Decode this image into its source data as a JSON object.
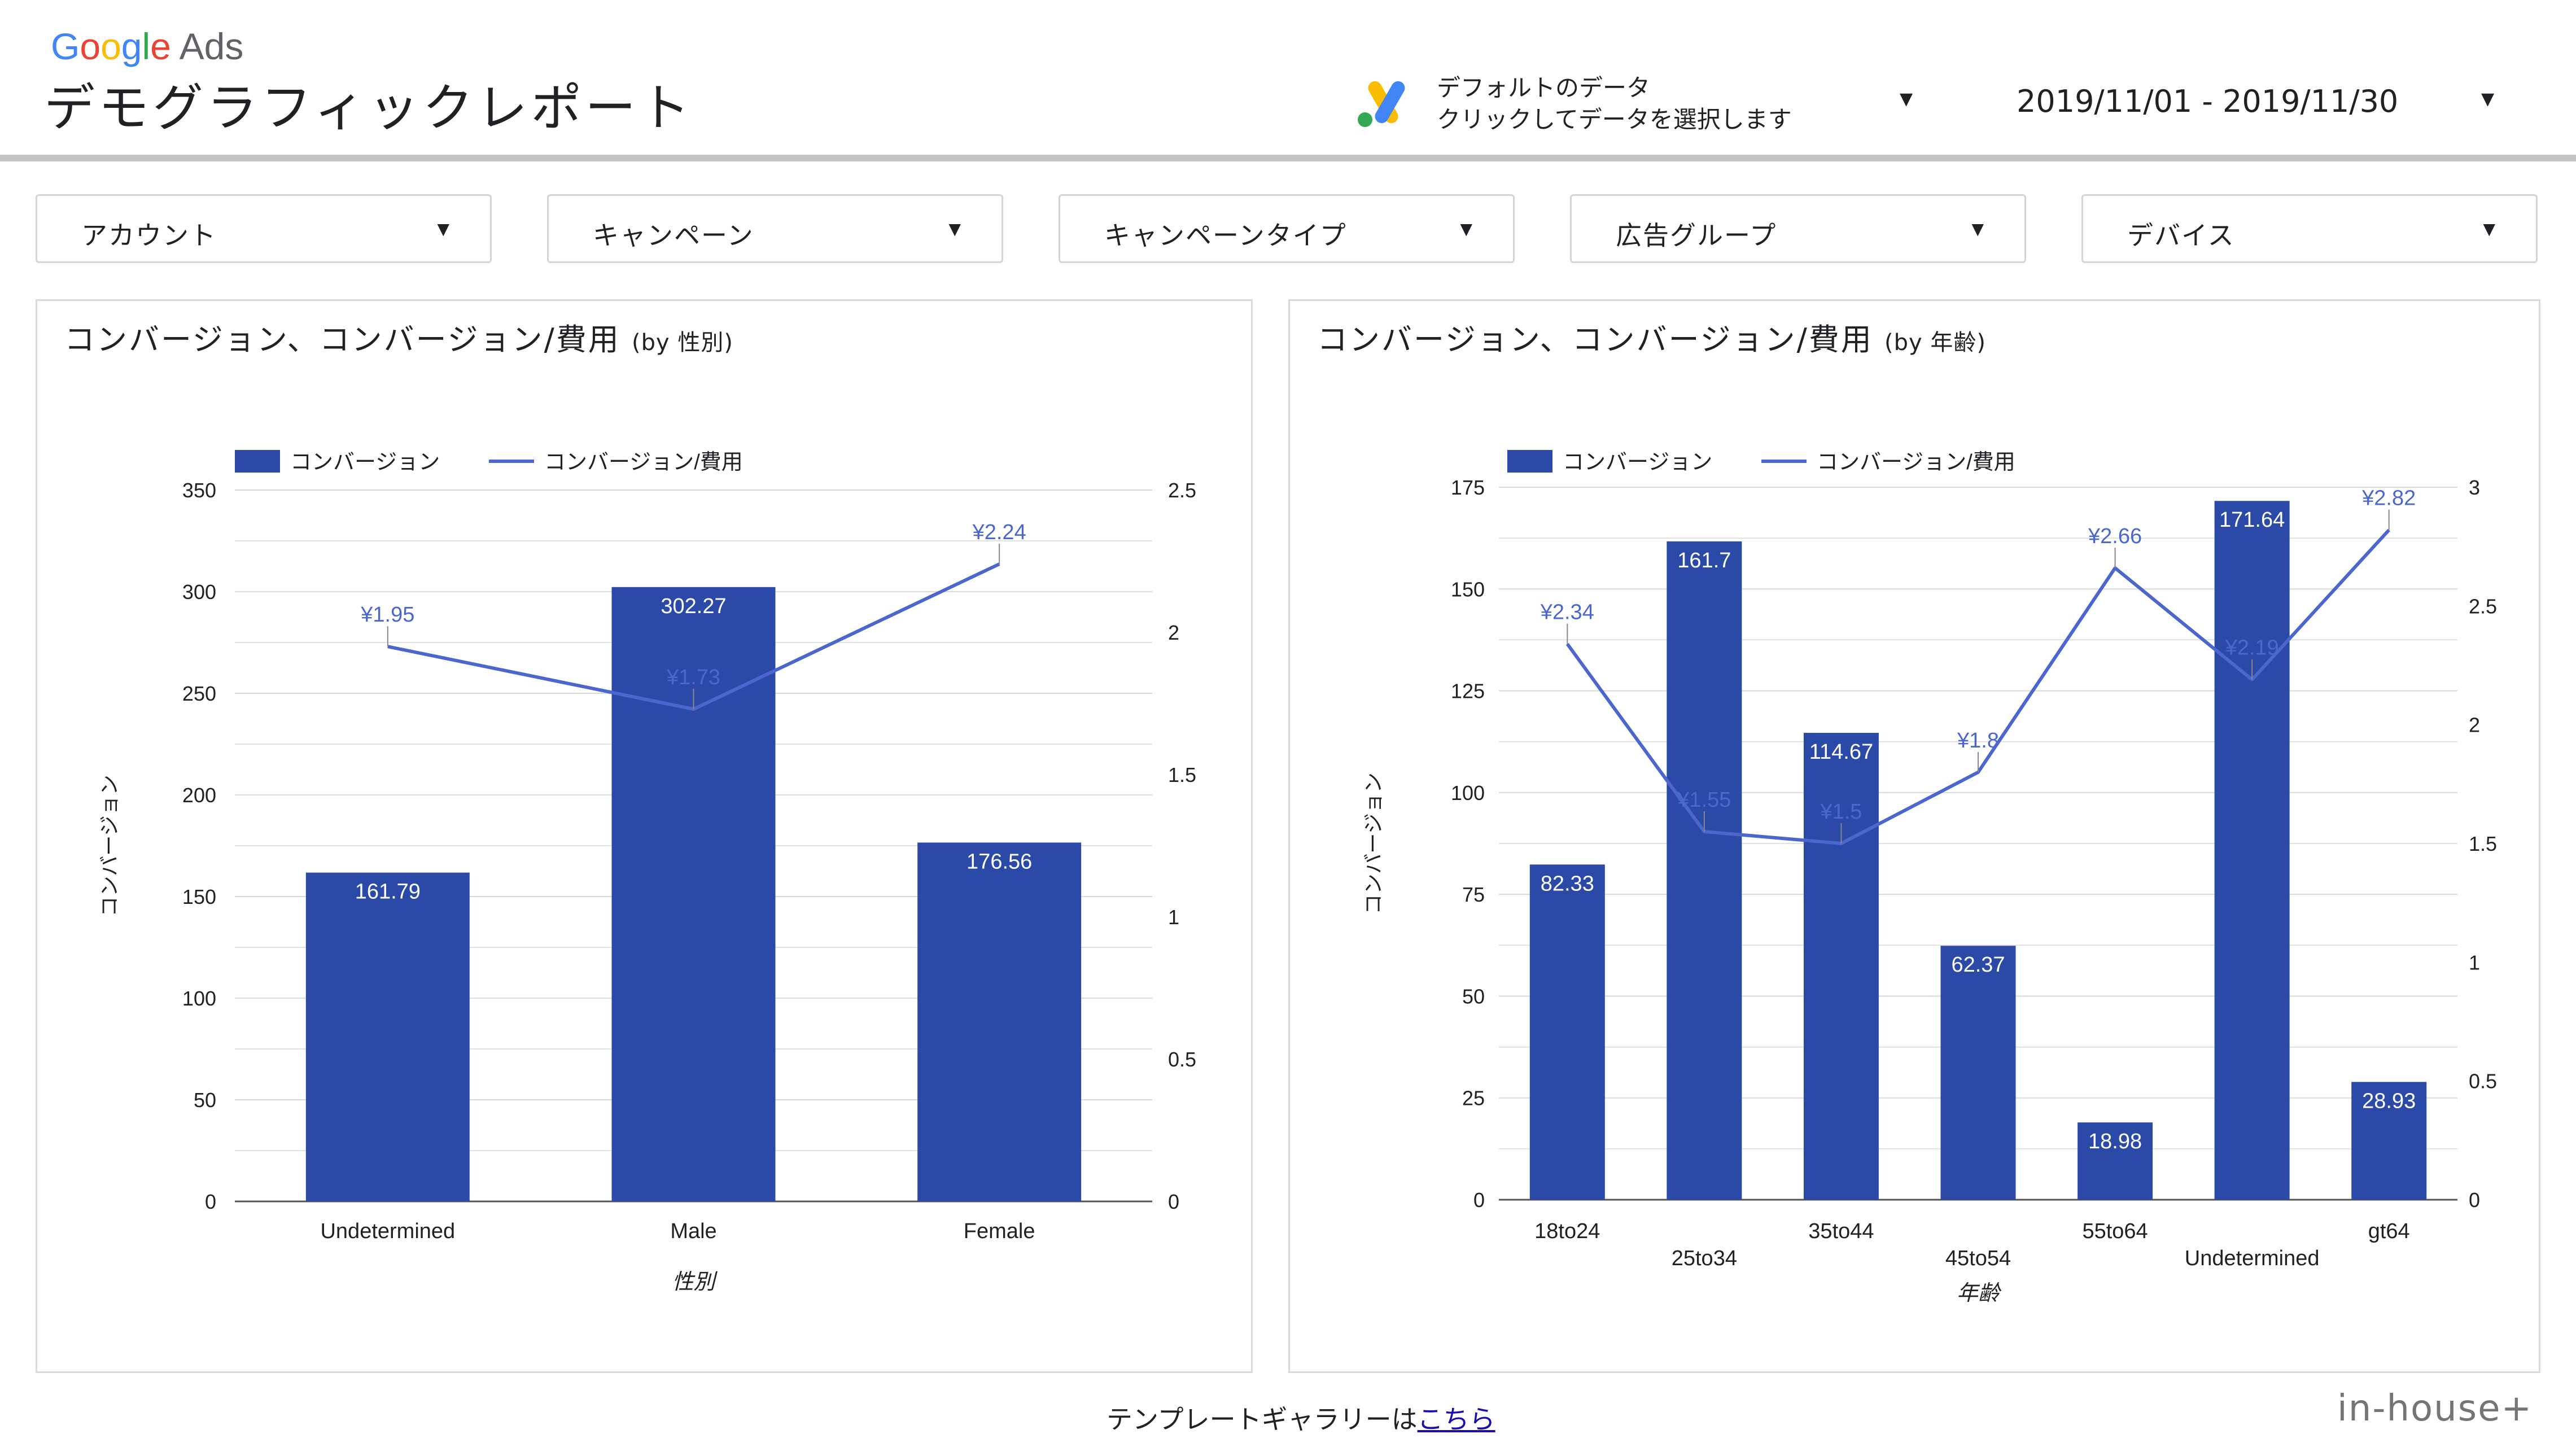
{
  "header": {
    "brand_google": "Google",
    "brand_ads": "Ads",
    "title": "デモグラフィックレポート",
    "datasource_line1": "デフォルトのデータ",
    "datasource_line2": "クリックしてデータを選択します",
    "date_range": "2019/11/01 - 2019/11/30"
  },
  "filters": [
    {
      "label": "アカウント"
    },
    {
      "label": "キャンペーン"
    },
    {
      "label": "キャンペーンタイプ"
    },
    {
      "label": "広告グループ"
    },
    {
      "label": "デバイス"
    }
  ],
  "colors": {
    "bar": "#2b4aa8",
    "line": "#4b66cc",
    "grid": "#d9d9d9"
  },
  "chart_data": [
    {
      "type": "bar",
      "title": "コンバージョン、コンバージョン/費用",
      "subtitle": "(by 性別)",
      "categories": [
        "Undetermined",
        "Male",
        "Female"
      ],
      "series": [
        {
          "name": "コンバージョン",
          "type": "bar",
          "axis": "left",
          "values": [
            161.79,
            302.27,
            176.56
          ],
          "labels": [
            "161.79",
            "302.27",
            "176.56"
          ]
        },
        {
          "name": "コンバージョン/費用",
          "type": "line",
          "axis": "right",
          "values": [
            1.95,
            1.73,
            2.24
          ],
          "labels": [
            "¥1.95",
            "¥1.73",
            "¥2.24"
          ]
        }
      ],
      "xlabel": "性別",
      "ylabel": "コンバージョン",
      "ylim": [
        0,
        350
      ],
      "yticks": [
        0,
        50,
        100,
        150,
        200,
        250,
        300,
        350
      ],
      "y2lim": [
        0,
        2.5
      ],
      "y2ticks": [
        0,
        0.5,
        1,
        1.5,
        2,
        2.5
      ],
      "legend": "top-left",
      "grid": true
    },
    {
      "type": "bar",
      "title": "コンバージョン、コンバージョン/費用",
      "subtitle": "(by 年齢)",
      "categories": [
        "18to24",
        "25to34",
        "35to44",
        "45to54",
        "55to64",
        "Undetermined",
        "gt64"
      ],
      "series": [
        {
          "name": "コンバージョン",
          "type": "bar",
          "axis": "left",
          "values": [
            82.33,
            161.7,
            114.67,
            62.37,
            18.98,
            171.64,
            28.93
          ],
          "labels": [
            "82.33",
            "161.7",
            "114.67",
            "62.37",
            "18.98",
            "171.64",
            "28.93"
          ]
        },
        {
          "name": "コンバージョン/費用",
          "type": "line",
          "axis": "right",
          "values": [
            2.34,
            1.55,
            1.5,
            1.8,
            2.66,
            2.19,
            2.82
          ],
          "labels": [
            "¥2.34",
            "¥1.55",
            "¥1.5",
            "¥1.8",
            "¥2.66",
            "¥2.19",
            "¥2.82"
          ]
        }
      ],
      "xlabel": "年齢",
      "ylabel": "コンバージョン",
      "ylim": [
        0,
        175
      ],
      "yticks": [
        0,
        25,
        50,
        75,
        100,
        125,
        150,
        175
      ],
      "y2lim": [
        0,
        3
      ],
      "y2ticks": [
        0,
        0.5,
        1,
        1.5,
        2,
        2.5,
        3
      ],
      "legend": "top-left",
      "grid": true
    }
  ],
  "footer": {
    "text": "テンプレートギャラリーは",
    "link": "こちら",
    "brand": "in-house+"
  }
}
